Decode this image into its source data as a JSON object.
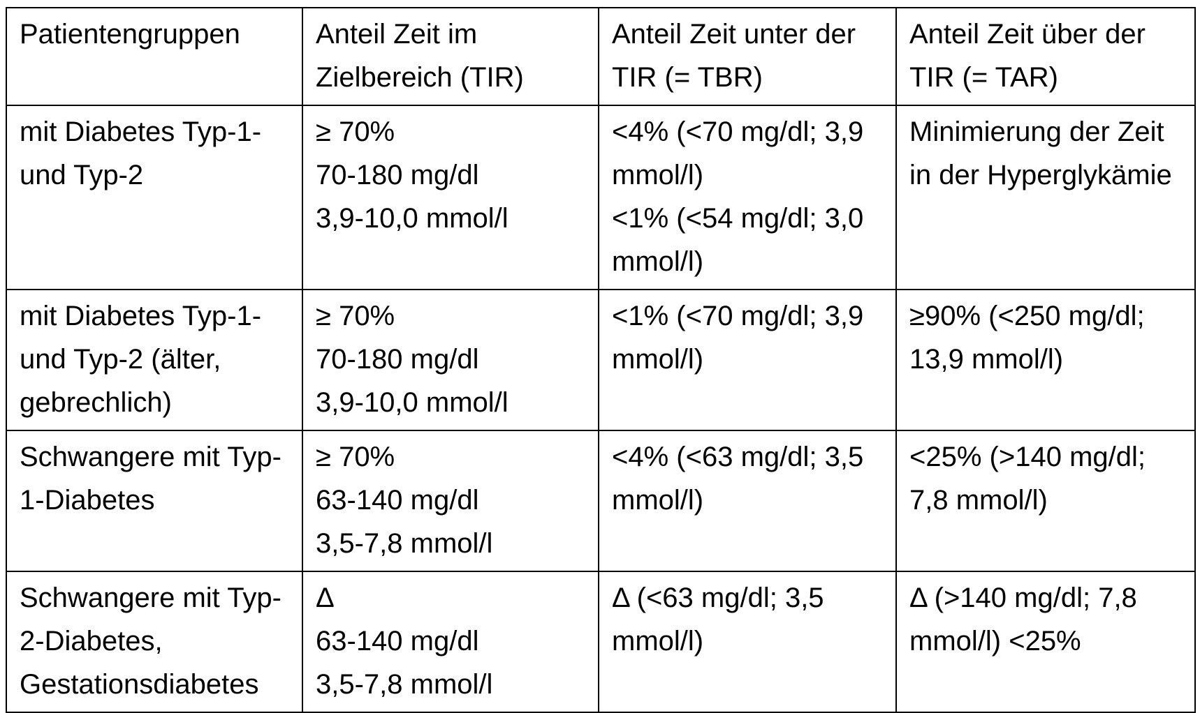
{
  "table": {
    "headers": [
      "Patientengruppen",
      "Anteil Zeit im Zielbereich (TIR)",
      "Anteil Zeit unter der TIR (= TBR)",
      "Anteil Zeit über der TIR (= TAR)"
    ],
    "rows": [
      {
        "group": "mit Diabetes Typ-1- und Typ-2",
        "tir": [
          "≥ 70%",
          "70-180 mg/dl",
          "3,9-10,0 mmol/l"
        ],
        "tbr": [
          "<4% (<70 mg/dl; 3,9 mmol/l)",
          "<1% (<54 mg/dl; 3,0 mmol/l)"
        ],
        "tar": "Minimierung der Zeit in der Hyperglykämie"
      },
      {
        "group": "mit Diabetes Typ-1- und Typ-2 (älter, gebrechlich)",
        "tir": [
          "≥ 70%",
          "70-180 mg/dl",
          "3,9-10,0 mmol/l"
        ],
        "tbr": [
          "<1% (<70 mg/dl; 3,9 mmol/l)"
        ],
        "tar": "≥90% (<250 mg/dl; 13,9 mmol/l)"
      },
      {
        "group": "Schwangere mit Typ-1-Diabetes",
        "tir": [
          "≥ 70%",
          "63-140 mg/dl",
          "3,5-7,8 mmol/l"
        ],
        "tbr": [
          "<4% (<63 mg/dl; 3,5 mmol/l)"
        ],
        "tar": "<25% (>140 mg/dl; 7,8 mmol/l)"
      },
      {
        "group": "Schwangere mit Typ-2-Diabetes, Gestationsdiabetes",
        "tir": [
          "Δ",
          "63-140 mg/dl",
          "3,5-7,8 mmol/l"
        ],
        "tbr": [
          "Δ (<63 mg/dl; 3,5 mmol/l)"
        ],
        "tar": "Δ (>140 mg/dl; 7,8 mmol/l) <25%"
      }
    ]
  }
}
